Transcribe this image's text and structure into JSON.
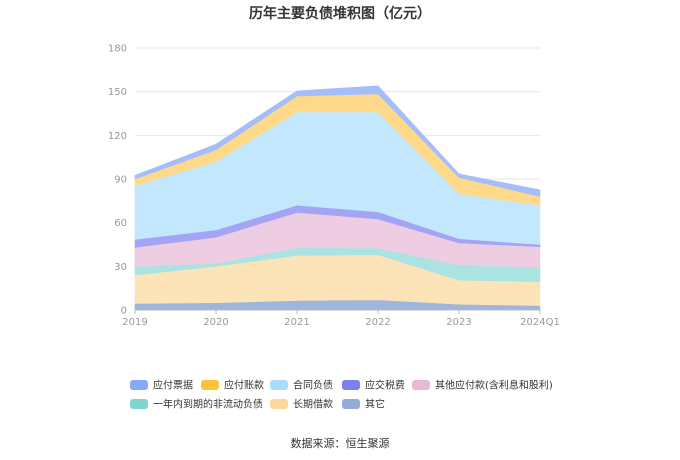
{
  "chart_data": {
    "type": "area",
    "stacked": true,
    "title": "历年主要负债堆积图（亿元）",
    "source": "数据来源：恒生聚源",
    "x": [
      "2019",
      "2020",
      "2021",
      "2022",
      "2023",
      "2024Q1"
    ],
    "ylim": [
      0,
      180
    ],
    "yticks": [
      0,
      30,
      60,
      90,
      120,
      150,
      180
    ],
    "grid": true,
    "legend_position": "bottom",
    "series": [
      {
        "name": "其它",
        "color": "#9eb5dc",
        "values": [
          4.5,
          5.0,
          6.5,
          7.0,
          4.0,
          3.0
        ]
      },
      {
        "name": "长期借款",
        "color": "#fde4b8",
        "values": [
          19.5,
          25.0,
          31.0,
          31.0,
          16.5,
          16.5
        ]
      },
      {
        "name": "一年内到期的非流动负债",
        "color": "#aae3e2",
        "values": [
          6.0,
          2.0,
          5.5,
          4.5,
          10.5,
          10.0
        ]
      },
      {
        "name": "其他应付款(含利息和股利)",
        "color": "#eecde3",
        "values": [
          13.0,
          18.0,
          24.0,
          20.0,
          15.0,
          14.0
        ]
      },
      {
        "name": "应交税费",
        "color": "#a3a5f4",
        "values": [
          5.5,
          5.0,
          5.0,
          5.0,
          3.0,
          1.5
        ]
      },
      {
        "name": "合同负债",
        "color": "#c3e7fd",
        "values": [
          37.0,
          47.0,
          64.0,
          68.5,
          31.0,
          27.0
        ]
      },
      {
        "name": "应付账款",
        "color": "#fed98a",
        "values": [
          4.5,
          8.0,
          11.0,
          12.5,
          11.0,
          6.0
        ]
      },
      {
        "name": "应付票据",
        "color": "#a6bdfb",
        "values": [
          2.5,
          4.0,
          3.5,
          5.5,
          2.5,
          4.5
        ]
      }
    ],
    "legend_order": [
      "应付票据",
      "应付账款",
      "合同负债",
      "应交税费",
      "其他应付款(含利息和股利)",
      "一年内到期的非流动负债",
      "长期借款",
      "其它"
    ],
    "legend_colors": {
      "应付票据": "#86a9fb",
      "应付账款": "#fcc43a",
      "合同负债": "#a8ddfd",
      "应交税费": "#7f7ff2",
      "其他应付款(含利息和股利)": "#e8b9d6",
      "一年内到期的非流动负债": "#80d4d2",
      "长期借款": "#fdd89c",
      "其它": "#93acd8"
    }
  }
}
